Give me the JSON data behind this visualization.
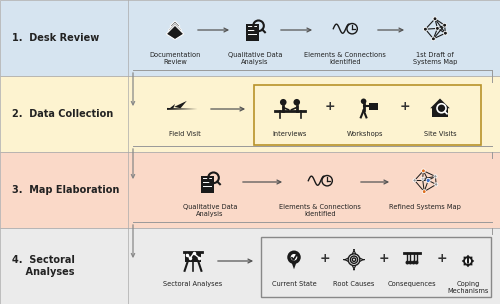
{
  "fig_width": 5.0,
  "fig_height": 3.04,
  "dpi": 100,
  "bg_color": "#f2f2f2",
  "row_colors": [
    "#d6e4f0",
    "#fdf3d0",
    "#fad9c8",
    "#ebebeb"
  ],
  "row_labels": [
    "1.  Desk Review",
    "2.  Data Collection",
    "3.  Map Elaboration",
    "4.  Sectoral\n    Analyses"
  ],
  "border_color": "#aaaaaa",
  "arrow_color": "#555555",
  "connector_color": "#999999",
  "text_color": "#222222",
  "label_fontsize": 7.0,
  "item_label_fontsize": 4.8,
  "box_color": "#c8aa60",
  "box2_color": "#888888"
}
